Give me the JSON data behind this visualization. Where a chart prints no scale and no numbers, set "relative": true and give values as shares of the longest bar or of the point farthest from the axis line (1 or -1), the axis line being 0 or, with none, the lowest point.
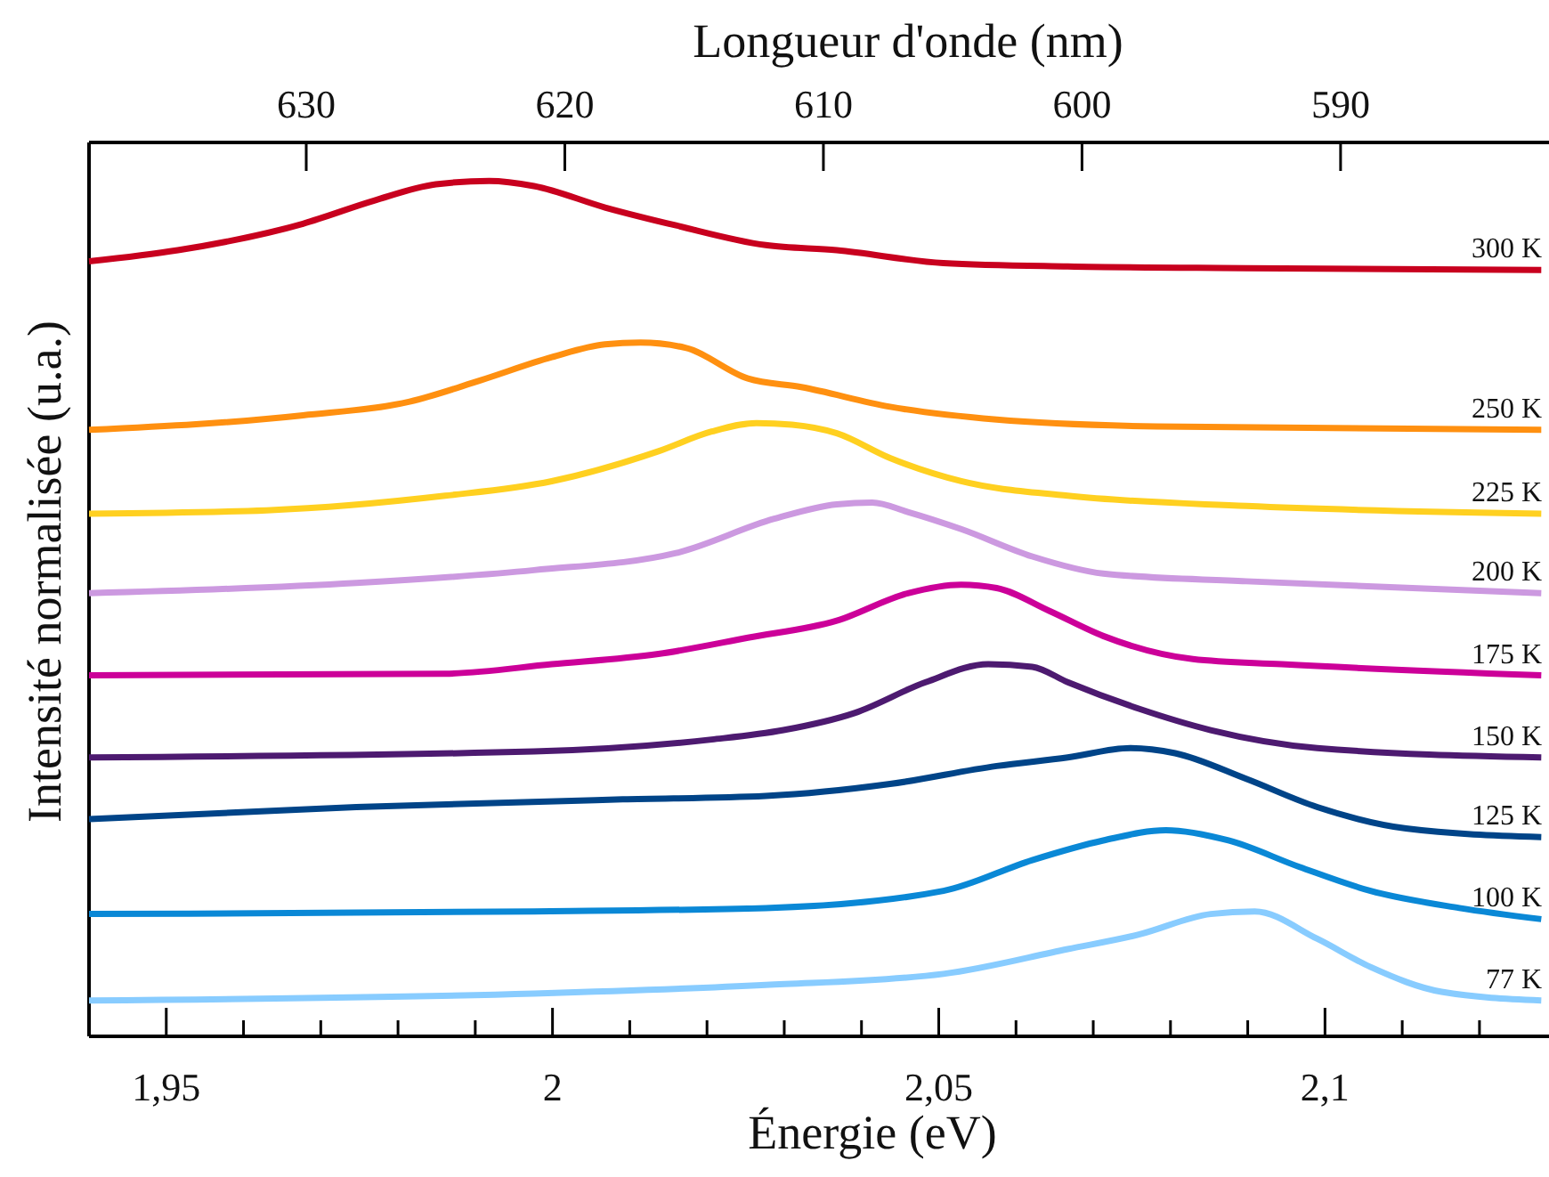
{
  "chart_data": {
    "type": "line",
    "relative": true,
    "xlabel": "Énergie (eV)",
    "ylabel": "Intensité normalisée (u.a.)",
    "x2label": "Longueur d'onde (nm)",
    "xlim": [
      1.94,
      2.129
    ],
    "xticks": [
      {
        "value": 1.95,
        "label": "1,95"
      },
      {
        "value": 1.96,
        "label": null
      },
      {
        "value": 1.97,
        "label": null
      },
      {
        "value": 1.98,
        "label": null
      },
      {
        "value": 1.99,
        "label": null
      },
      {
        "value": 2,
        "label": "2"
      },
      {
        "value": 2.01,
        "label": null
      },
      {
        "value": 2.02,
        "label": null
      },
      {
        "value": 2.03,
        "label": null
      },
      {
        "value": 2.04,
        "label": null
      },
      {
        "value": 2.05,
        "label": "2,05"
      },
      {
        "value": 2.06,
        "label": null
      },
      {
        "value": 2.07,
        "label": null
      },
      {
        "value": 2.08,
        "label": null
      },
      {
        "value": 2.09,
        "label": null
      },
      {
        "value": 2.1,
        "label": "2,1"
      },
      {
        "value": 2.11,
        "label": null
      },
      {
        "value": 2.12,
        "label": null
      }
    ],
    "x2lim": [
      638.4,
      581.94
    ],
    "x2ticks": [
      630,
      620,
      610,
      600,
      590
    ],
    "marker": "none",
    "line_style": "solid",
    "series": [
      {
        "name": "300 K",
        "color": "#c8001e",
        "x": [
          1.94,
          1.9515,
          1.9677,
          1.9769,
          1.9849,
          1.9918,
          1.9976,
          2.0068,
          2.016,
          2.0276,
          2.0368,
          2.0506,
          2.0667,
          2.0898,
          2.128
        ],
        "values": [
          0.906,
          0.919,
          0.95,
          0.977,
          0.996,
          1.0,
          0.994,
          0.969,
          0.948,
          0.925,
          0.919,
          0.904,
          0.9,
          0.898,
          0.896
        ]
      },
      {
        "name": "250 K",
        "color": "#ff9010",
        "x": [
          1.94,
          1.9677,
          1.9815,
          1.9907,
          1.9999,
          2.0068,
          2.0114,
          2.0172,
          2.0253,
          2.0322,
          2.0437,
          2.0575,
          2.0782,
          2.128
        ],
        "values": [
          0.709,
          0.726,
          0.742,
          0.767,
          0.794,
          0.809,
          0.811,
          0.805,
          0.769,
          0.759,
          0.736,
          0.721,
          0.713,
          0.709
        ]
      },
      {
        "name": "225 K",
        "color": "#ffd020",
        "x": [
          1.94,
          1.963,
          1.9861,
          1.9999,
          2.0137,
          2.0206,
          2.0264,
          2.031,
          2.0368,
          2.0437,
          2.0529,
          2.0667,
          2.0898,
          2.128
        ],
        "values": [
          0.611,
          0.615,
          0.632,
          0.649,
          0.684,
          0.707,
          0.717,
          0.715,
          0.705,
          0.676,
          0.649,
          0.632,
          0.62,
          0.611
        ]
      },
      {
        "name": "200 K",
        "color": "#cc99e0",
        "x": [
          1.94,
          1.9746,
          1.9976,
          2.016,
          2.0287,
          2.0368,
          2.0414,
          2.046,
          2.0529,
          2.0621,
          2.0713,
          2.0898,
          2.128
        ],
        "values": [
          0.518,
          0.53,
          0.545,
          0.565,
          0.605,
          0.622,
          0.624,
          0.613,
          0.593,
          0.561,
          0.541,
          0.532,
          0.518
        ]
      },
      {
        "name": "175 K",
        "color": "#cc0099",
        "x": [
          1.94,
          1.9861,
          1.9999,
          2.0137,
          2.0253,
          2.0368,
          2.046,
          2.0529,
          2.0575,
          2.0644,
          2.0713,
          2.0829,
          2.0944,
          2.128
        ],
        "values": [
          0.422,
          0.424,
          0.435,
          0.447,
          0.466,
          0.486,
          0.518,
          0.528,
          0.524,
          0.497,
          0.468,
          0.441,
          0.435,
          0.422
        ]
      },
      {
        "name": "150 K",
        "color": "#4d1a70",
        "x": [
          1.94,
          1.9976,
          2.0206,
          2.0299,
          2.0391,
          2.0483,
          2.0564,
          2.0621,
          2.0667,
          2.0759,
          2.0852,
          2.099,
          2.128
        ],
        "values": [
          0.326,
          0.333,
          0.347,
          0.358,
          0.378,
          0.414,
          0.435,
          0.432,
          0.414,
          0.383,
          0.358,
          0.337,
          0.326
        ]
      },
      {
        "name": "125 K",
        "color": "#004488",
        "x": [
          1.94,
          1.9746,
          2.0091,
          2.0276,
          2.0437,
          2.0575,
          2.0667,
          2.0748,
          2.0806,
          2.0898,
          2.099,
          2.1105,
          2.128
        ],
        "values": [
          0.254,
          0.268,
          0.277,
          0.281,
          0.295,
          0.316,
          0.326,
          0.337,
          0.331,
          0.301,
          0.268,
          0.243,
          0.233
        ]
      },
      {
        "name": "100 K",
        "color": "#0a88d6",
        "x": [
          1.94,
          1.9976,
          2.0276,
          2.0506,
          2.0621,
          2.0713,
          2.0794,
          2.0875,
          2.0967,
          2.1059,
          2.1174,
          2.128
        ],
        "values": [
          0.143,
          0.146,
          0.15,
          0.17,
          0.206,
          0.229,
          0.241,
          0.229,
          0.198,
          0.17,
          0.15,
          0.137
        ]
      },
      {
        "name": "77 K",
        "color": "#88ccff",
        "x": [
          1.94,
          1.9976,
          2.0276,
          2.0506,
          2.0667,
          2.0759,
          2.0852,
          2.0909,
          2.099,
          2.1059,
          2.1151,
          2.128
        ],
        "values": [
          0.042,
          0.05,
          0.06,
          0.073,
          0.102,
          0.119,
          0.143,
          0.146,
          0.114,
          0.081,
          0.052,
          0.042
        ]
      }
    ]
  }
}
